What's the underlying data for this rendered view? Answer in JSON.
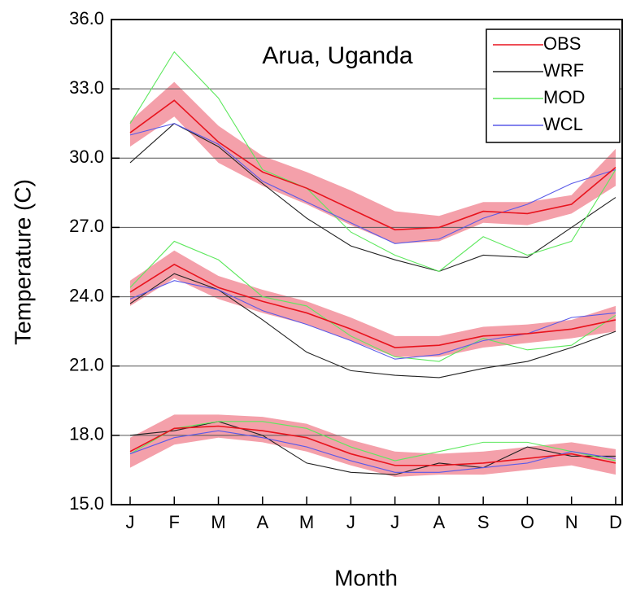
{
  "chart_data": {
    "type": "line",
    "annotation": "Arua, Uganda",
    "x_label": "Month",
    "y_label": "Temperature (C)",
    "categories": [
      "J",
      "F",
      "M",
      "A",
      "M",
      "J",
      "J",
      "A",
      "S",
      "O",
      "N",
      "D"
    ],
    "ylim": [
      15,
      36
    ],
    "yticks": [
      {
        "value": 15,
        "label": "15.0"
      },
      {
        "value": 18,
        "label": "18.0"
      },
      {
        "value": 21,
        "label": "21.0"
      },
      {
        "value": 24,
        "label": "24.0"
      },
      {
        "value": 27,
        "label": "27.0"
      },
      {
        "value": 30,
        "label": "30.0"
      },
      {
        "value": 33,
        "label": "33.0"
      },
      {
        "value": 36,
        "label": "36.0"
      }
    ],
    "grid": true,
    "legend": "upper right",
    "band_color": "#f4a0aa",
    "series": [
      {
        "name": "OBS",
        "color": "#e8141e",
        "lines": [
          [
            31.1,
            32.5,
            30.7,
            29.4,
            28.7,
            27.8,
            26.9,
            27.0,
            27.7,
            27.6,
            28.0,
            29.6
          ],
          [
            24.2,
            25.4,
            24.4,
            23.8,
            23.3,
            22.6,
            21.8,
            21.9,
            22.3,
            22.4,
            22.6,
            23.0
          ],
          [
            17.3,
            18.3,
            18.4,
            18.2,
            17.9,
            17.2,
            16.7,
            16.7,
            16.8,
            17.0,
            17.2,
            16.8
          ]
        ],
        "band_upper": [
          [
            31.6,
            33.3,
            31.4,
            30.1,
            29.4,
            28.6,
            27.7,
            27.5,
            28.1,
            28.1,
            28.4,
            30.4
          ],
          [
            24.7,
            26.0,
            24.9,
            24.3,
            23.8,
            23.1,
            22.3,
            22.3,
            22.7,
            22.8,
            23.0,
            23.6
          ],
          [
            17.9,
            18.9,
            18.9,
            18.8,
            18.5,
            17.8,
            17.3,
            17.2,
            17.3,
            17.5,
            17.7,
            17.4
          ]
        ],
        "band_lower": [
          [
            30.5,
            31.8,
            29.8,
            28.8,
            28.0,
            27.1,
            26.3,
            26.4,
            27.2,
            27.1,
            27.6,
            28.8
          ],
          [
            23.6,
            24.8,
            23.9,
            23.3,
            22.8,
            22.1,
            21.4,
            21.4,
            21.8,
            22.0,
            22.2,
            22.5
          ],
          [
            16.6,
            17.6,
            17.9,
            17.7,
            17.3,
            16.7,
            16.2,
            16.3,
            16.3,
            16.5,
            16.7,
            16.3
          ]
        ]
      },
      {
        "name": "WRF",
        "color": "#222222",
        "lines": [
          [
            29.8,
            31.5,
            30.5,
            28.9,
            27.4,
            26.2,
            25.6,
            25.1,
            25.8,
            25.7,
            27.0,
            28.3
          ],
          [
            23.7,
            25.0,
            24.3,
            23.0,
            21.6,
            20.8,
            20.6,
            20.5,
            20.9,
            21.2,
            21.8,
            22.5
          ],
          [
            18.0,
            18.2,
            18.6,
            18.0,
            16.8,
            16.4,
            16.3,
            16.8,
            16.6,
            17.5,
            17.1,
            17.1
          ]
        ]
      },
      {
        "name": "MOD",
        "color": "#5ee85e",
        "lines": [
          [
            31.5,
            34.6,
            32.6,
            29.5,
            28.7,
            26.8,
            25.8,
            25.1,
            26.6,
            25.8,
            26.4,
            29.5
          ],
          [
            24.4,
            26.4,
            25.6,
            24.0,
            23.6,
            22.3,
            21.4,
            21.2,
            22.2,
            21.7,
            21.9,
            23.2
          ],
          [
            17.2,
            18.3,
            18.6,
            18.6,
            18.3,
            17.5,
            16.9,
            17.3,
            17.7,
            17.7,
            17.3,
            16.9
          ]
        ]
      },
      {
        "name": "WCL",
        "color": "#5a5ae8",
        "lines": [
          [
            31.0,
            31.5,
            30.6,
            29.0,
            28.1,
            27.2,
            26.3,
            26.5,
            27.4,
            28.0,
            28.9,
            29.5
          ],
          [
            23.9,
            24.7,
            24.3,
            23.4,
            22.8,
            22.1,
            21.3,
            21.5,
            22.1,
            22.4,
            23.1,
            23.3
          ],
          [
            17.2,
            17.9,
            18.2,
            17.9,
            17.5,
            16.9,
            16.4,
            16.4,
            16.6,
            16.8,
            17.3,
            17.0
          ]
        ]
      }
    ]
  }
}
